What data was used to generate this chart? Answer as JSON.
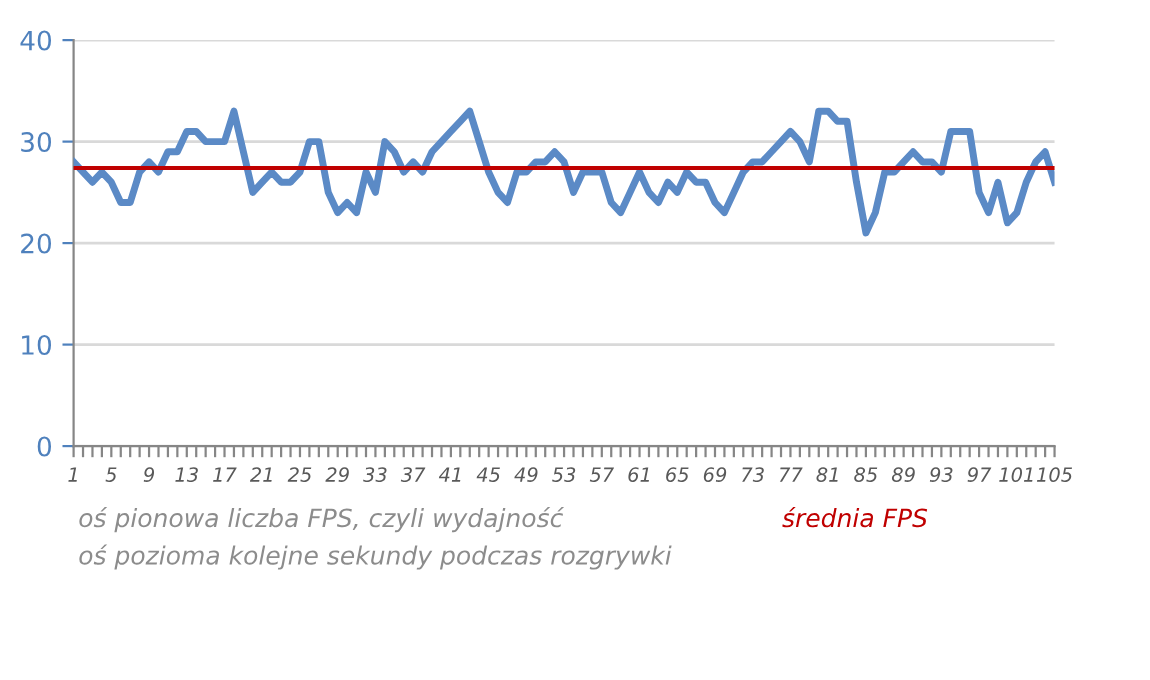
{
  "chart_data": {
    "type": "line",
    "categories": [
      "1",
      null,
      null,
      null,
      "5",
      null,
      null,
      null,
      "9",
      null,
      null,
      null,
      "13",
      null,
      null,
      null,
      "17",
      null,
      null,
      null,
      "21",
      null,
      null,
      null,
      "25",
      null,
      null,
      null,
      "29",
      null,
      null,
      null,
      "33",
      null,
      null,
      null,
      "37",
      null,
      null,
      null,
      "41",
      null,
      null,
      null,
      "45",
      null,
      null,
      null,
      "49",
      null,
      null,
      null,
      "53",
      null,
      null,
      null,
      "57",
      null,
      null,
      null,
      "61",
      null,
      null,
      null,
      "65",
      null,
      null,
      null,
      "69",
      null,
      null,
      null,
      "73",
      null,
      null,
      null,
      "77",
      null,
      null,
      null,
      "81",
      null,
      null,
      null,
      "85",
      null,
      null,
      null,
      "89",
      null,
      null,
      null,
      "93",
      null,
      null,
      null,
      "97",
      null,
      null,
      null,
      "101",
      null,
      null,
      null,
      "105"
    ],
    "series": [
      {
        "color": "#5b8ac6",
        "values": [
          28,
          27,
          26,
          27,
          26,
          24,
          24,
          27,
          28,
          27,
          29,
          29,
          31,
          31,
          30,
          30,
          30,
          33,
          29,
          25,
          26,
          27,
          26,
          26,
          27,
          30,
          30,
          25,
          23,
          24,
          23,
          27,
          25,
          30,
          29,
          27,
          28,
          27,
          29,
          30,
          31,
          32,
          33,
          30,
          27,
          25,
          24,
          27,
          27,
          28,
          28,
          29,
          28,
          25,
          27,
          27,
          27,
          24,
          23,
          25,
          27,
          25,
          24,
          26,
          25,
          27,
          26,
          26,
          24,
          23,
          25,
          27,
          28,
          28,
          29,
          30,
          31,
          30,
          28,
          33,
          33,
          32,
          32,
          26,
          21,
          23,
          27,
          27,
          28,
          29,
          28,
          28,
          27,
          31,
          31,
          31,
          25,
          23,
          26,
          22,
          23,
          26,
          28,
          29,
          26
        ]
      }
    ],
    "ylim": [
      0,
      40
    ],
    "yticks": [
      0,
      10,
      20,
      30,
      40
    ],
    "grid": "y",
    "legend": false,
    "marker": "none",
    "line_style": "solid",
    "ref_lines": [
      {
        "axis": "y",
        "value": 27.4,
        "label": "średnia FPS",
        "color": "#c00000"
      }
    ],
    "annotations": [
      "oś pionowa liczba FPS, czyli wydajność",
      "oś pozioma kolejne sekundy podczas rozgrywki"
    ]
  }
}
